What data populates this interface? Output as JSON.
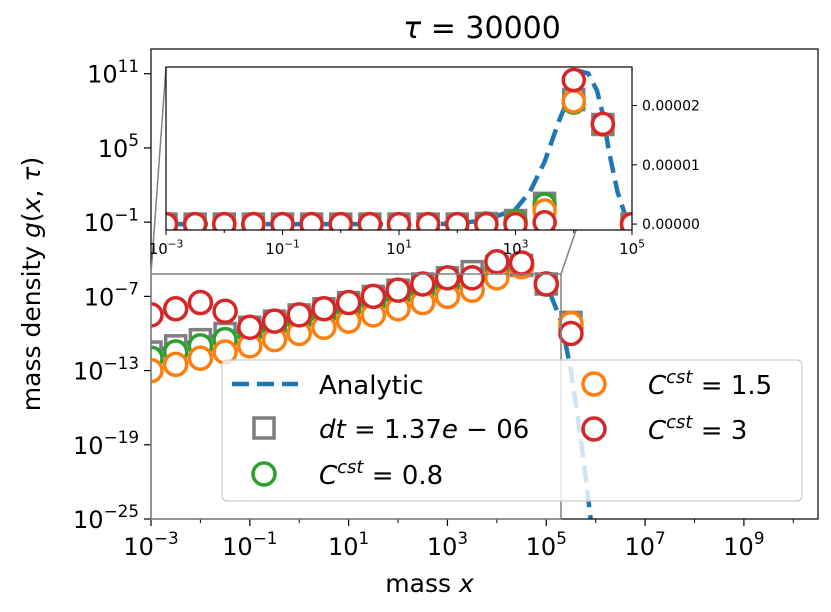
{
  "chart_data": [
    {
      "type": "scatter",
      "panel": "main",
      "title_symbol": "τ",
      "title_value": "= 30000",
      "xlabel": "mass x",
      "ylabel": "mass density g(x, τ)",
      "xscale": "log",
      "yscale": "log",
      "xlim_exp": [
        -3,
        10.5
      ],
      "ylim_exp": [
        -25,
        13
      ],
      "x_ticks": [
        {
          "base": "10",
          "exp": "−3",
          "v": -3
        },
        {
          "base": "10",
          "exp": "−1",
          "v": -1
        },
        {
          "base": "10",
          "exp": "1",
          "v": 1
        },
        {
          "base": "10",
          "exp": "3",
          "v": 3
        },
        {
          "base": "10",
          "exp": "5",
          "v": 5
        },
        {
          "base": "10",
          "exp": "7",
          "v": 7
        },
        {
          "base": "10",
          "exp": "9",
          "v": 9
        }
      ],
      "y_ticks": [
        {
          "base": "10",
          "exp": "11",
          "v": 11
        },
        {
          "base": "10",
          "exp": "5",
          "v": 5
        },
        {
          "base": "10",
          "exp": "−1",
          "v": -1
        },
        {
          "base": "10",
          "exp": "−7",
          "v": -7
        },
        {
          "base": "10",
          "exp": "−13",
          "v": -13
        },
        {
          "base": "10",
          "exp": "−19",
          "v": -19
        },
        {
          "base": "10",
          "exp": "−25",
          "v": -25
        }
      ],
      "analytic_log": {
        "x": [
          -3,
          -2,
          -1,
          0,
          1,
          2,
          3,
          3.5,
          4,
          4.5,
          5,
          5.3,
          5.5,
          5.7,
          5.9
        ],
        "y": [
          -11.5,
          -10.5,
          -9.5,
          -8.5,
          -7.5,
          -6.5,
          -5.5,
          -5.0,
          -4.5,
          -4.3,
          -6.0,
          -9.0,
          -13.0,
          -18.5,
          -25.0
        ]
      },
      "series": [
        {
          "name": "dt = 1.37e−06",
          "marker": "square",
          "color": "#7f7f7f",
          "x_log": [
            -3,
            -2.5,
            -2,
            -1.5,
            -1,
            -0.5,
            0,
            0.5,
            1,
            1.5,
            2,
            2.5,
            3,
            3.5,
            4,
            4.5,
            5,
            5.5
          ],
          "y_log": [
            -11.5,
            -11,
            -10.5,
            -10,
            -9.5,
            -9,
            -8.5,
            -8,
            -7.5,
            -7,
            -6.5,
            -6,
            -5.5,
            -5,
            -4.6,
            -4.5,
            -6,
            -9.1
          ]
        },
        {
          "name": "C^cst = 0.8",
          "marker": "circle",
          "color": "#2ca02c",
          "x_log": [
            -3,
            -2.5,
            -2,
            -1.5,
            -1,
            -0.5,
            0,
            0.5,
            1,
            1.5,
            2,
            2.5,
            3,
            3.5,
            4,
            4.5,
            5,
            5.5
          ],
          "y_log": [
            -12,
            -11.5,
            -11,
            -10.5,
            -10,
            -9.5,
            -9,
            -8.5,
            -8,
            -7.5,
            -7,
            -6.5,
            -6,
            -5.5,
            -4.8,
            -4.5,
            -6,
            -9.5
          ]
        },
        {
          "name": "C^cst = 1.5",
          "marker": "circle",
          "color": "#ff7f0e",
          "x_log": [
            -3,
            -2.5,
            -2,
            -1.5,
            -1,
            -0.5,
            0,
            0.5,
            1,
            1.5,
            2,
            2.5,
            3,
            3.5,
            4,
            4.5,
            5,
            5.5
          ],
          "y_log": [
            -13,
            -12.5,
            -12,
            -11.5,
            -11,
            -10.5,
            -10,
            -9.5,
            -9,
            -8.5,
            -8,
            -7.5,
            -7,
            -6.5,
            -5.5,
            -4.6,
            -6,
            -9.2
          ]
        },
        {
          "name": "C^cst = 3",
          "marker": "circle",
          "color": "#d62728",
          "x_log": [
            -3,
            -2.5,
            -2,
            -1.5,
            -1,
            -0.5,
            0,
            0.5,
            1,
            1.5,
            2,
            2.5,
            3,
            3.5,
            4,
            4.5,
            5,
            5.5
          ],
          "y_log": [
            -8.5,
            -8,
            -7.5,
            -8.2,
            -9.5,
            -9,
            -8.5,
            -8,
            -7.5,
            -7,
            -6.5,
            -6,
            -5.5,
            -5.5,
            -4.2,
            -4.3,
            -6,
            -10
          ]
        }
      ],
      "legend": [
        {
          "label": "Analytic",
          "kind": "line",
          "color": "#1f77b4"
        },
        {
          "label": "dt = 1.37e − 06",
          "kind": "square",
          "color": "#7f7f7f"
        },
        {
          "label": "C^cst = 0.8",
          "kind": "circle",
          "color": "#2ca02c"
        },
        {
          "label": "C^cst = 1.5",
          "kind": "circle",
          "color": "#ff7f0e"
        },
        {
          "label": "C^cst = 3",
          "kind": "circle",
          "color": "#d62728"
        }
      ],
      "legend_placement": "lower-right"
    },
    {
      "type": "scatter",
      "panel": "inset",
      "xscale": "log",
      "yscale": "linear",
      "xlim_exp": [
        -3,
        5
      ],
      "ylim": [
        -1e-06,
        2.65e-05
      ],
      "x_ticks": [
        {
          "base": "10",
          "exp": "−3",
          "v": -3
        },
        {
          "base": "10",
          "exp": "−1",
          "v": -1
        },
        {
          "base": "10",
          "exp": "1",
          "v": 1
        },
        {
          "base": "10",
          "exp": "3",
          "v": 3
        },
        {
          "base": "10",
          "exp": "5",
          "v": 5
        }
      ],
      "y_ticks": [
        {
          "label": "0.00000",
          "v": 0
        },
        {
          "label": "0.00001",
          "v": 1e-05
        },
        {
          "label": "0.00002",
          "v": 2e-05
        }
      ],
      "analytic": {
        "x_log": [
          -3,
          1.5,
          2,
          2.5,
          3,
          3.25,
          3.5,
          3.75,
          3.9,
          4.1,
          4.25,
          4.4,
          4.5,
          4.6,
          4.75,
          4.9,
          5
        ],
        "y": [
          0,
          0,
          1e-07,
          7e-07,
          2.5e-06,
          5.5e-06,
          1.05e-05,
          1.75e-05,
          2.1e-05,
          2.58e-05,
          2.54e-05,
          2.25e-05,
          1.85e-05,
          1.25e-05,
          5.5e-06,
          1e-06,
          0
        ]
      },
      "series": [
        {
          "name": "dt = 1.37e−06",
          "color": "#7f7f7f",
          "x_log": [
            -3,
            -2.5,
            -2,
            -1.5,
            -1,
            -0.5,
            0,
            0.5,
            1,
            1.5,
            2,
            2.5,
            3,
            3.5,
            4,
            4.5,
            5
          ],
          "y": [
            0,
            0,
            0,
            0,
            0,
            0,
            0,
            0,
            0,
            0,
            0,
            1e-07,
            6e-07,
            3.5e-06,
            2.1e-05,
            1.68e-05,
            0
          ]
        },
        {
          "name": "C^cst = 0.8",
          "color": "#2ca02c",
          "x_log": [
            -3,
            -2.5,
            -2,
            -1.5,
            -1,
            -0.5,
            0,
            0.5,
            1,
            1.5,
            2,
            2.5,
            3,
            3.5,
            4,
            4.5,
            5
          ],
          "y": [
            0,
            0,
            0,
            0,
            0,
            0,
            0,
            0,
            0,
            0,
            0,
            1e-07,
            5e-07,
            3.3e-06,
            2.05e-05,
            1.68e-05,
            0
          ]
        },
        {
          "name": "C^cst = 1.5",
          "color": "#ff7f0e",
          "x_log": [
            -3,
            -2.5,
            -2,
            -1.5,
            -1,
            -0.5,
            0,
            0.5,
            1,
            1.5,
            2,
            2.5,
            3,
            3.5,
            4,
            4.5,
            5
          ],
          "y": [
            0,
            0,
            0,
            0,
            0,
            0,
            0,
            0,
            0,
            0,
            0,
            0,
            1e-07,
            2.3e-06,
            2.07e-05,
            1.68e-05,
            0
          ]
        },
        {
          "name": "C^cst = 3",
          "color": "#d62728",
          "x_log": [
            -3,
            -2.5,
            -2,
            -1.5,
            -1,
            -0.5,
            0,
            0.5,
            1,
            1.5,
            2,
            2.5,
            3,
            3.5,
            4,
            4.5,
            5
          ],
          "y": [
            0,
            0,
            0,
            0,
            0,
            0,
            0,
            0,
            0,
            0,
            0,
            0,
            0,
            3e-07,
            2.43e-05,
            1.69e-05,
            0
          ]
        }
      ]
    }
  ]
}
